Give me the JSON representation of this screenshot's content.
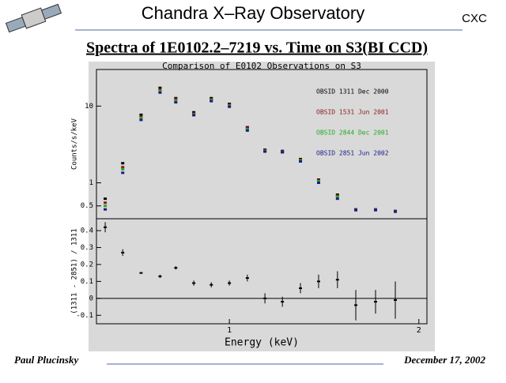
{
  "header": {
    "title": "Chandra X–Ray Observatory",
    "org": "CXC"
  },
  "subtitle": "Spectra of 1E0102.2–7219 vs. Time on S3(BI CCD)",
  "footer": {
    "author": "Paul Plucinsky",
    "date": "December 17, 2002"
  },
  "chart_data": [
    {
      "type": "scatter",
      "title": "Comparison of E0102 Observations on S3",
      "y_label": "Counts/s/keV",
      "log_x": true,
      "log_y": true,
      "xlim": [
        0.615,
        2.06
      ],
      "ylim": [
        0.34,
        30
      ],
      "yticks": [
        0.5,
        1,
        10
      ],
      "legend": "upper right",
      "x": [
        0.635,
        0.677,
        0.724,
        0.776,
        0.822,
        0.878,
        0.936,
        1.0,
        1.068,
        1.139,
        1.214,
        1.297,
        1.386,
        1.485,
        1.588,
        1.707,
        1.835
      ],
      "series": [
        {
          "name": "OBSID 1311 Dec 2000",
          "color": "#000000",
          "values": [
            0.62,
            1.8,
            7.7,
            17.3,
            12.7,
            8.3,
            12.7,
            10.7,
            5.3,
            2.7,
            2.6,
            2.04,
            1.1,
            0.7,
            0.45,
            0.45,
            0.43
          ]
        },
        {
          "name": "OBSID 1531 Jun 2001",
          "color": "#8b1a1a",
          "values": [
            0.55,
            1.6,
            7.3,
            16.5,
            12.4,
            8.0,
            12.3,
            10.4,
            5.2,
            2.65,
            2.55,
            2.0,
            1.08,
            0.68,
            0.45,
            0.45,
            0.43
          ]
        },
        {
          "name": "OBSID 2844 Dec 2001",
          "color": "#22aa22",
          "values": [
            0.5,
            1.5,
            7.0,
            15.8,
            11.8,
            7.8,
            12.0,
            10.1,
            5.0,
            2.6,
            2.5,
            1.95,
            1.05,
            0.66,
            0.44,
            0.44,
            0.42
          ]
        },
        {
          "name": "OBSID 2851 Jun 2002",
          "color": "#1a1a8b",
          "values": [
            0.45,
            1.35,
            6.6,
            15.0,
            11.2,
            7.6,
            11.6,
            9.8,
            4.8,
            2.55,
            2.5,
            1.9,
            1.0,
            0.62,
            0.44,
            0.44,
            0.42
          ]
        }
      ]
    },
    {
      "type": "errorbar",
      "x_label": "Energy (keV)",
      "y_label": "(1311 - 2851) / 1311",
      "log_x": true,
      "xlim": [
        0.615,
        2.06
      ],
      "ylim": [
        -0.15,
        0.47
      ],
      "xticks": [
        1,
        2
      ],
      "yticks": [
        0.4,
        0.3,
        0.2,
        0.1,
        0,
        -0.1
      ],
      "x": [
        0.635,
        0.677,
        0.724,
        0.776,
        0.822,
        0.878,
        0.936,
        1.0,
        1.068,
        1.139,
        1.214,
        1.297,
        1.386,
        1.485,
        1.588,
        1.707,
        1.835
      ],
      "values": [
        0.42,
        0.27,
        0.15,
        0.13,
        0.18,
        0.09,
        0.08,
        0.09,
        0.12,
        0.0,
        -0.02,
        0.06,
        0.1,
        0.11,
        -0.04,
        -0.02,
        -0.01
      ],
      "errors": [
        0.03,
        0.02,
        0.005,
        0.01,
        0.01,
        0.015,
        0.015,
        0.015,
        0.02,
        0.03,
        0.03,
        0.03,
        0.04,
        0.05,
        0.09,
        0.07,
        0.11
      ]
    }
  ]
}
